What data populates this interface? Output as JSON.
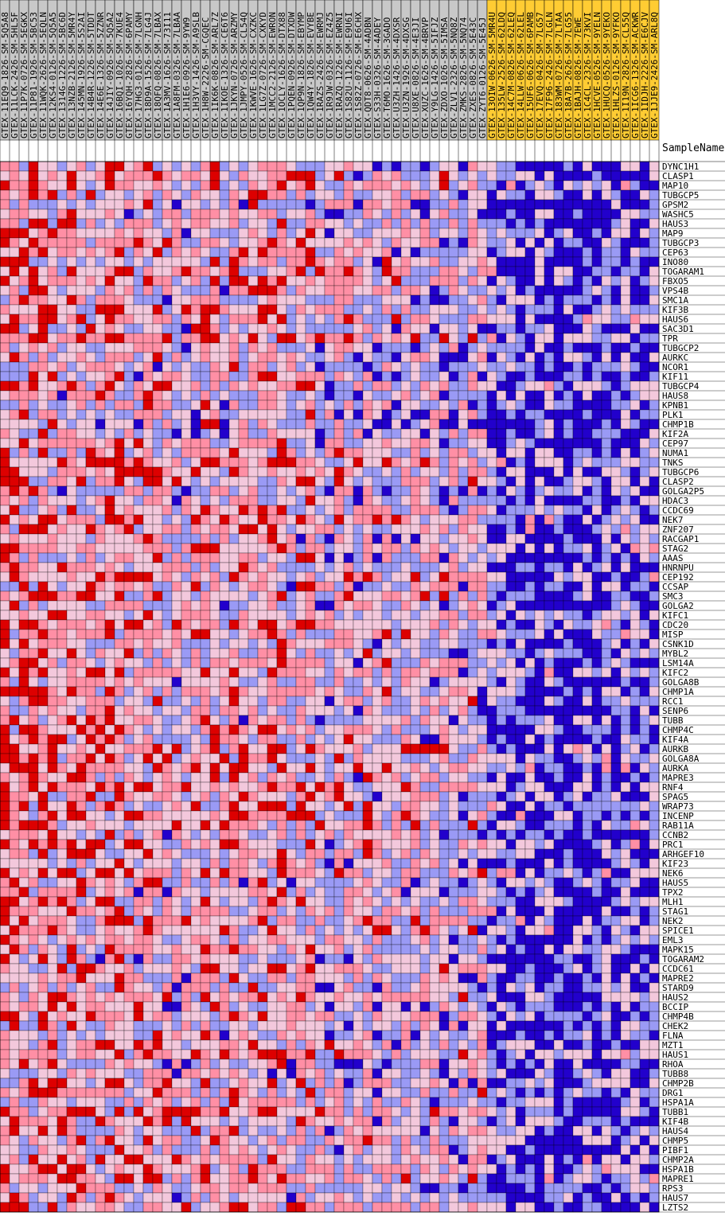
{
  "chart_data": {
    "type": "heatmap",
    "column_header_label": "SampleName",
    "samples": [
      {
        "name": "GTEX-11EQ9-1826-SM-5Q5A8",
        "group": "a"
      },
      {
        "name": "GTEX-11LCK-2426-SM-5HL5F",
        "group": "a"
      },
      {
        "name": "GTEX-11P7K-0726-SM-5EGKX",
        "group": "a"
      },
      {
        "name": "GTEX-11P81-1926-SM-5BC53",
        "group": "a"
      },
      {
        "name": "GTEX-11WQK-2626-SM-5EQLN",
        "group": "a"
      },
      {
        "name": "GTEX-12KS4-0126-SM-5Q5A5",
        "group": "a"
      },
      {
        "name": "GTEX-1314G-1226-SM-5BC6D",
        "group": "a"
      },
      {
        "name": "GTEX-13NZB-2126-SM-5MR4Y",
        "group": "a"
      },
      {
        "name": "GTEX-145MN-1926-SM-5S2AI",
        "group": "a"
      },
      {
        "name": "GTEX-14B4R-1226-SM-5TDDT",
        "group": "a"
      },
      {
        "name": "GTEX-14E6E-1326-SM-5ZZNR",
        "group": "a"
      },
      {
        "name": "GTEX-14JIY-0926-SM-5Q5A2",
        "group": "a"
      },
      {
        "name": "GTEX-16BQI-1026-SM-7KUE4",
        "group": "a"
      },
      {
        "name": "GTEX-16YQH-2826-SM-6PAMY",
        "group": "a"
      },
      {
        "name": "GTEX-17HG3-0126-SM-7LGNH",
        "group": "a"
      },
      {
        "name": "GTEX-18D9A-1526-SM-7LG4J",
        "group": "a"
      },
      {
        "name": "GTEX-18QFQ-0826-SM-7LBAX",
        "group": "a"
      },
      {
        "name": "GTEX-1A3MV-1626-SM-73I11",
        "group": "a"
      },
      {
        "name": "GTEX-1A8FM-0326-SM-7LBAA",
        "group": "a"
      },
      {
        "name": "GTEX-1H1E6-0926-SM-9YW9",
        "group": "a"
      },
      {
        "name": "GTEX-1H3VY-1426-SM-A9SLB",
        "group": "a"
      },
      {
        "name": "GTEX-1H8W-2226-SM-CGQEC",
        "group": "a"
      },
      {
        "name": "GTEX-1IK6K-0826-SM-ARL7Z",
        "group": "a"
      },
      {
        "name": "GTEX-1IKOE-1326-SM-CE6T6",
        "group": "a"
      },
      {
        "name": "GTEX-1JKYN-0726-SM-ARZMY",
        "group": "a"
      },
      {
        "name": "GTEX-1JMPY-0526-SM-CL54Q",
        "group": "a"
      },
      {
        "name": "GTEX-1KWVE-1626-SM-CXZKC",
        "group": "a"
      },
      {
        "name": "GTEX-1LG7Z-0726-SM-CXKYD",
        "group": "a"
      },
      {
        "name": "GTEX-1MCC2-2126-SM-EWRON",
        "group": "a"
      },
      {
        "name": "GTEX-1OCLY-1626-SM-DTX88",
        "group": "a"
      },
      {
        "name": "GTEX-1PQEN-0926-SM-DTXDW",
        "group": "a"
      },
      {
        "name": "GTEX-1QP9N-1826-SM-EBYMP",
        "group": "a"
      },
      {
        "name": "GTEX-1QW4Y-1826-SM-EVYBE",
        "group": "a"
      },
      {
        "name": "GTEX-1RAZS-2426-SM-EWRMJ",
        "group": "a"
      },
      {
        "name": "GTEX-1R9JW-0326-SM-EZ4Z5",
        "group": "a"
      },
      {
        "name": "GTEX-1RAZQ-1226-SM-EWRNI",
        "group": "a"
      },
      {
        "name": "GTEX-1S82U-1126-SM-E9U6I",
        "group": "a"
      },
      {
        "name": "GTEX-1S82Z-0726-SM-E6CHX",
        "group": "a"
      },
      {
        "name": "GTEX-QDT8-0626-SM-4ADBN",
        "group": "a"
      },
      {
        "name": "GTEX-S33H-0326-SM-4ADEY",
        "group": "a"
      },
      {
        "name": "GTEX-T6MO-1626-SM-3GADO",
        "group": "a"
      },
      {
        "name": "GTEX-U3ZH-1426-SM-4DXSR",
        "group": "a"
      },
      {
        "name": "GTEX-U3ZN-1926-SM-4DXSG",
        "group": "a"
      },
      {
        "name": "GTEX-U8XE-0826-SM-4E3JI",
        "group": "a"
      },
      {
        "name": "GTEX-XUZC-1626-SM-4BRVP",
        "group": "a"
      },
      {
        "name": "GTEX-Y9LG-1426-SM-5IFJZ",
        "group": "a"
      },
      {
        "name": "GTEX-ZDXO-1026-SM-5IMSA",
        "group": "a"
      },
      {
        "name": "GTEX-ZLV1-2326-SM-5NQ8Z",
        "group": "a"
      },
      {
        "name": "GTEX-ZMKS-2826-SM-5NQ74",
        "group": "a"
      },
      {
        "name": "GTEX-ZXES-0826-SM-5E43C",
        "group": "a"
      },
      {
        "name": "GTEX-ZYT6-0126-SM-5E45J",
        "group": "a"
      },
      {
        "name": "GTEX-13OIW-0626-SM-5MR4U",
        "group": "b"
      },
      {
        "name": "GTEX-135LW-2526-SM-62LDQ",
        "group": "b"
      },
      {
        "name": "GTEX-14C7M-0826-SM-62LEQ",
        "group": "b"
      },
      {
        "name": "GTEX-14LLW-0626-SM-62LEL",
        "group": "b"
      },
      {
        "name": "GTEX-15UF6-0626-SM-6PAMB",
        "group": "b"
      },
      {
        "name": "GTEX-17EVQ-0426-SM-7LG57",
        "group": "b"
      },
      {
        "name": "GTEX-17F96-2426-SM-7LGLN",
        "group": "b"
      },
      {
        "name": "GTEX-183WM-0726-SM-7LTAA",
        "group": "b"
      },
      {
        "name": "GTEX-18A7B-2626-SM-7LG55",
        "group": "b"
      },
      {
        "name": "GTEX-1BAJH-0826-SM-7EWE",
        "group": "b"
      },
      {
        "name": "GTEX-1C4CL-2326-SM-73KVI",
        "group": "b"
      },
      {
        "name": "GTEX-1HCVE-0526-SM-9YELN",
        "group": "b"
      },
      {
        "name": "GTEX-1HUCQ-0526-SM-9YEKO",
        "group": "b"
      },
      {
        "name": "GTEX-1HLZS-0126-SM-9YFKO",
        "group": "b"
      },
      {
        "name": "GTEX-1I19N-2826-SM-CL55Q",
        "group": "b"
      },
      {
        "name": "GTEX-1ICG6-1326-SM-ACKWR",
        "group": "b"
      },
      {
        "name": "GTEX-1IDJH-2226-SM-E6CJV",
        "group": "b"
      },
      {
        "name": "GTEX-1JJE9-2426-SM-ARL8Q",
        "group": "b"
      }
    ],
    "genes": [
      "DYNC1H1",
      "CLASP1",
      "MAP10",
      "TUBGCP5",
      "GPSM2",
      "WASHC5",
      "HAUS3",
      "MAP9",
      "TUBGCP3",
      "CEP63",
      "INO80",
      "TOGARAM1",
      "FBXO5",
      "VPS4B",
      "SMC1A",
      "KIF3B",
      "HAUS6",
      "SAC3D1",
      "TPR",
      "TUBGCP2",
      "AURKC",
      "NCOR1",
      "KIF11",
      "TUBGCP4",
      "HAUS8",
      "KPNB1",
      "PLK1",
      "CHMP1B",
      "KIF2A",
      "CEP97",
      "NUMA1",
      "TNKS",
      "TUBGCP6",
      "CLASP2",
      "GOLGA2P5",
      "HDAC3",
      "CCDC69",
      "NEK7",
      "ZNF207",
      "RACGAP1",
      "STAG2",
      "AAAS",
      "HNRNPU",
      "CEP192",
      "CCSAP",
      "SMC3",
      "GOLGA2",
      "KIFC1",
      "CDC20",
      "MISP",
      "CSNK1D",
      "MYBL2",
      "LSM14A",
      "KIFC2",
      "GOLGA8B",
      "CHMP1A",
      "RCC1",
      "SENP6",
      "TUBB",
      "CHMP4C",
      "KIF4A",
      "AURKB",
      "GOLGA8A",
      "AURKA",
      "MAPRE3",
      "RNF4",
      "SPAG5",
      "WRAP73",
      "INCENP",
      "RAB11A",
      "CCNB2",
      "PRC1",
      "ARHGEF10",
      "KIF23",
      "NEK6",
      "HAUS5",
      "TPX2",
      "MLH1",
      "STAG1",
      "NEK2",
      "SPICE1",
      "EML3",
      "MAPK15",
      "TOGARAM2",
      "CCDC61",
      "MAPRE2",
      "STARD9",
      "HAUS2",
      "BCCIP",
      "CHMP4B",
      "CHEK2",
      "FLNA",
      "MZT1",
      "HAUS1",
      "RHOA",
      "TUBB8",
      "CHMP2B",
      "DRG1",
      "HSPA1A",
      "TUBB1",
      "KIF4B",
      "HAUS4",
      "CHMP5",
      "PIBF1",
      "CHMP2A",
      "HSPA1B",
      "MAPRE1",
      "RPS3",
      "HAUS7",
      "LZTS2"
    ],
    "colors": {
      "high": "#dd0000",
      "mid_high": "#ff8fa5",
      "neutral": "#f3c8dc",
      "mid_low": "#9a9af5",
      "low": "#2200cc",
      "group_a_label_bg": "#c8c8c8",
      "group_b_label_bg": "#ffcc33",
      "grid_line": "#000000"
    },
    "value_scale": {
      "min": -1,
      "max": 1,
      "note_colors": "red=high, blue=low"
    }
  }
}
